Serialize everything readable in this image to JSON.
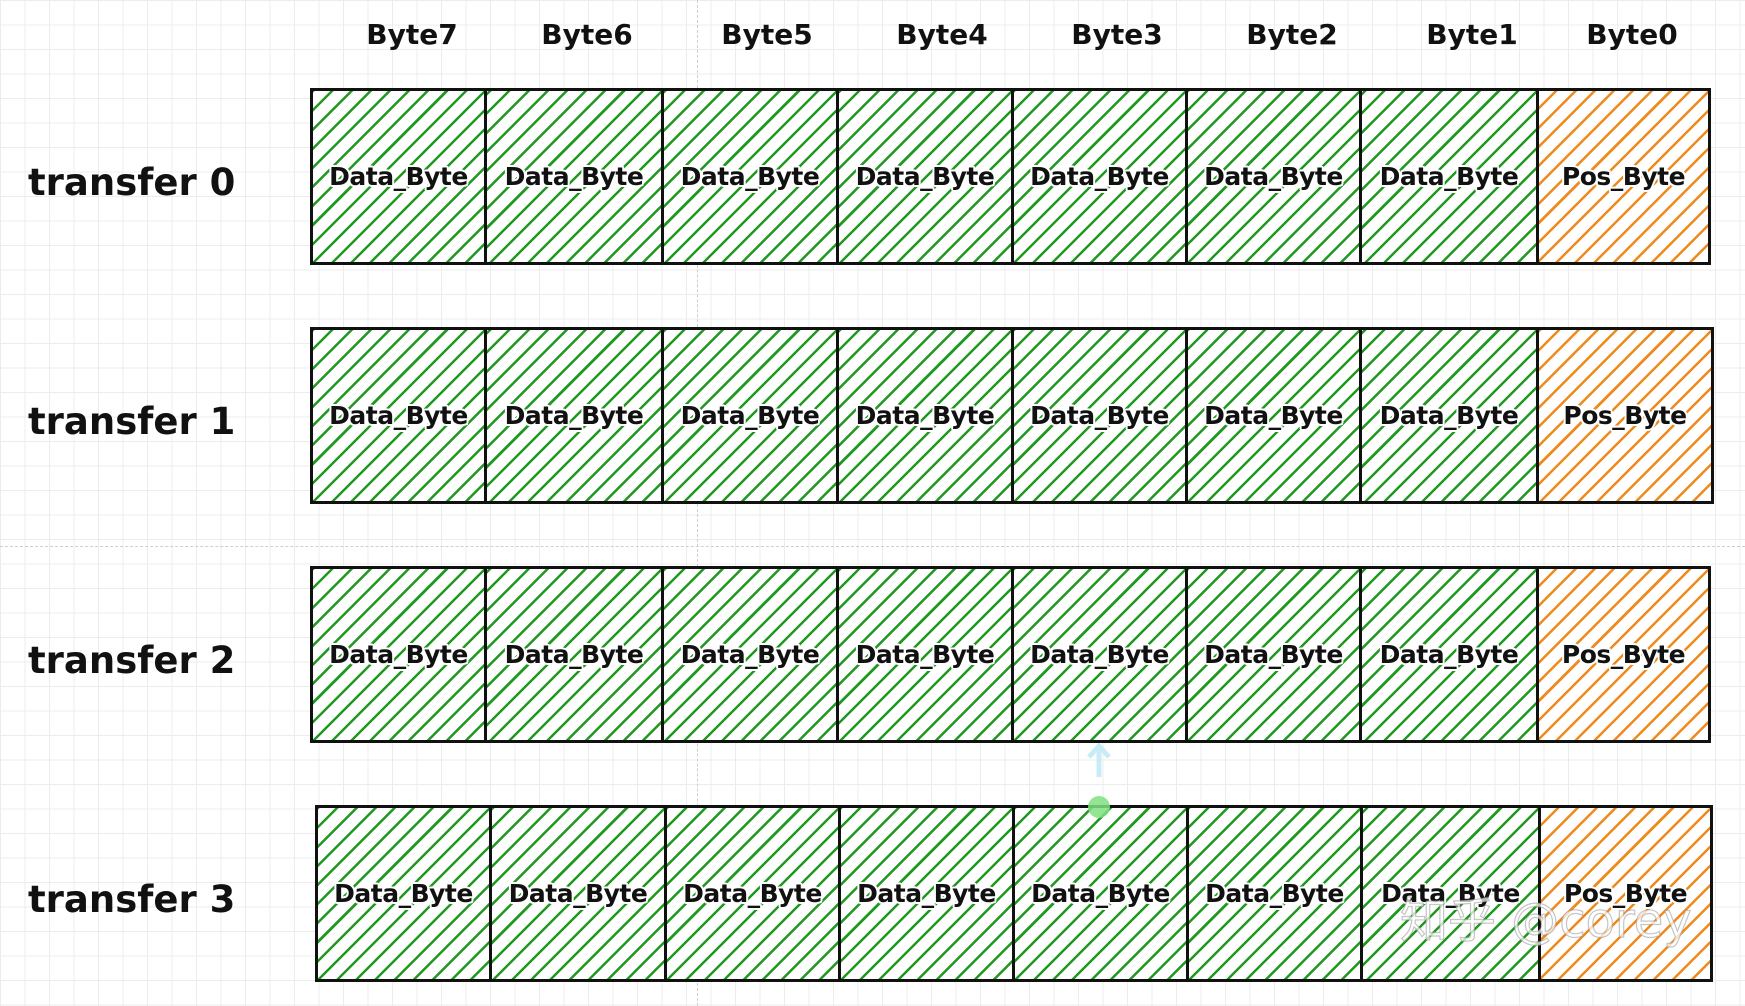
{
  "columns": [
    "Byte7",
    "Byte6",
    "Byte5",
    "Byte4",
    "Byte3",
    "Byte2",
    "Byte1",
    "Byte0"
  ],
  "rows": [
    {
      "label": "transfer 0",
      "cells": [
        "Data_Byte",
        "Data_Byte",
        "Data_Byte",
        "Data_Byte",
        "Data_Byte",
        "Data_Byte",
        "Data_Byte",
        "Pos_Byte"
      ]
    },
    {
      "label": "transfer 1",
      "cells": [
        "Data_Byte",
        "Data_Byte",
        "Data_Byte",
        "Data_Byte",
        "Data_Byte",
        "Data_Byte",
        "Data_Byte",
        "Pos_Byte"
      ]
    },
    {
      "label": "transfer 2",
      "cells": [
        "Data_Byte",
        "Data_Byte",
        "Data_Byte",
        "Data_Byte",
        "Data_Byte",
        "Data_Byte",
        "Data_Byte",
        "Pos_Byte"
      ]
    },
    {
      "label": "transfer 3",
      "cells": [
        "Data_Byte",
        "Data_Byte",
        "Data_Byte",
        "Data_Byte",
        "Data_Byte",
        "Data_Byte",
        "Data_Byte",
        "Pos_Byte"
      ]
    }
  ],
  "colors": {
    "data_hatch": "#1f9a1f",
    "pos_hatch": "#f08a1c",
    "border": "#111111"
  },
  "watermark": "知乎 @corey"
}
